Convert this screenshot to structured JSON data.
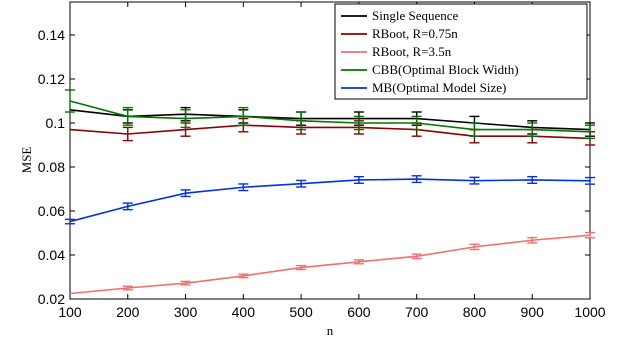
{
  "chart_data": {
    "type": "line",
    "title": "",
    "xlabel": "n",
    "ylabel": "MSE",
    "xlim": [
      100,
      1000
    ],
    "ylim": [
      0.02,
      0.155
    ],
    "xticks": [
      100,
      200,
      300,
      400,
      500,
      600,
      700,
      800,
      900,
      1000
    ],
    "xtick_labels": [
      "100",
      "200",
      "300",
      "400",
      "500",
      "600",
      "700",
      "800",
      "900",
      "1000"
    ],
    "yticks": [
      0.02,
      0.04,
      0.06,
      0.08,
      0.1,
      0.12,
      0.14
    ],
    "ytick_labels": [
      "0.02",
      "0.04",
      "0.06",
      "0.08",
      "0.1",
      "0.12",
      "0.14"
    ],
    "grid": false,
    "legend_position": "top-right",
    "x": [
      100,
      200,
      300,
      400,
      500,
      600,
      700,
      800,
      900,
      1000
    ],
    "series": [
      {
        "name": "Single Sequence",
        "color": "#000000",
        "values": [
          0.106,
          0.103,
          0.104,
          0.103,
          0.102,
          0.102,
          0.102,
          0.1,
          0.098,
          0.097
        ],
        "errors": [
          0.0,
          0.003,
          0.003,
          0.003,
          0.003,
          0.003,
          0.003,
          0.003,
          0.003,
          0.003
        ]
      },
      {
        "name": "RBoot, R=0.75n",
        "color": "#8b0000",
        "values": [
          0.097,
          0.095,
          0.097,
          0.099,
          0.098,
          0.098,
          0.097,
          0.094,
          0.094,
          0.093
        ],
        "errors": [
          0.0,
          0.003,
          0.003,
          0.003,
          0.003,
          0.003,
          0.003,
          0.003,
          0.003,
          0.003
        ]
      },
      {
        "name": "RBoot, R=3.5n",
        "color": "#f07070",
        "values": [
          0.0225,
          0.025,
          0.0272,
          0.0305,
          0.0343,
          0.0369,
          0.0394,
          0.0437,
          0.0467,
          0.049
        ],
        "errors": [
          0.0,
          0.0008,
          0.0008,
          0.0008,
          0.0009,
          0.0009,
          0.001,
          0.0012,
          0.0012,
          0.0012
        ]
      },
      {
        "name": "CBB(Optimal Block Width)",
        "color": "#007700",
        "values": [
          0.11,
          0.103,
          0.102,
          0.103,
          0.101,
          0.1,
          0.1,
          0.097,
          0.097,
          0.096
        ],
        "errors": [
          0.005,
          0.004,
          0.004,
          0.004,
          0.004,
          0.003,
          0.003,
          0.003,
          0.003,
          0.003
        ]
      },
      {
        "name": "MB(Optimal Model Size)",
        "color": "#0033dd",
        "values": [
          0.0552,
          0.0621,
          0.0681,
          0.0708,
          0.0724,
          0.0741,
          0.0745,
          0.0738,
          0.0741,
          0.0737
        ],
        "errors": [
          0.001,
          0.0015,
          0.0015,
          0.0015,
          0.0015,
          0.0015,
          0.0015,
          0.0015,
          0.0015,
          0.0015
        ]
      }
    ]
  }
}
